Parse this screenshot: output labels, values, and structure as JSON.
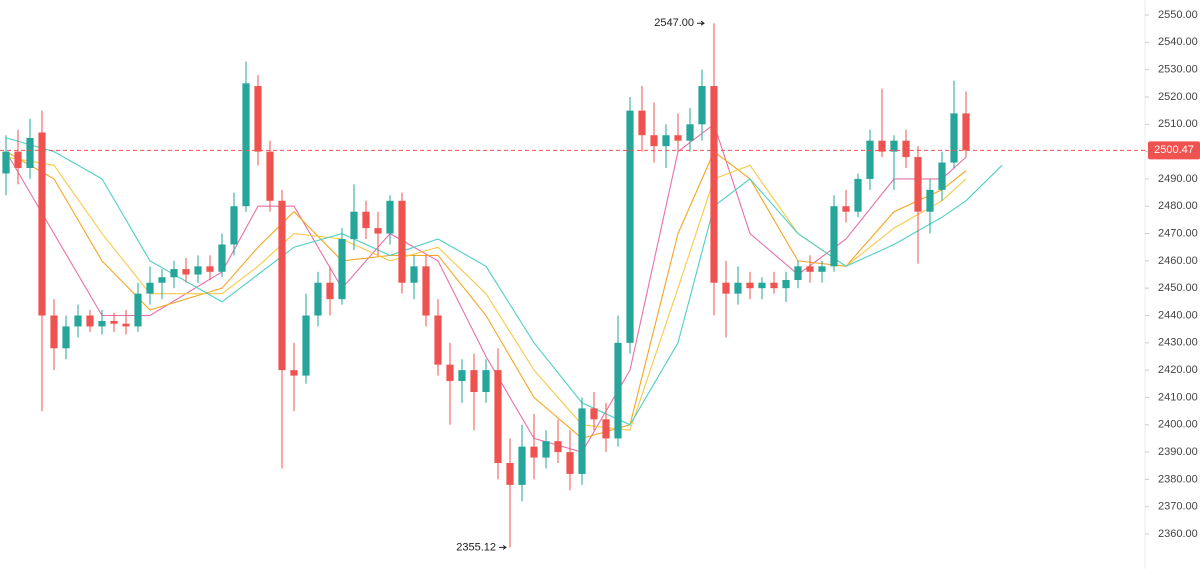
{
  "chart_data": {
    "type": "candlestick",
    "open": [
      2492,
      2500,
      2494,
      2507,
      2440,
      2428,
      2436,
      2440,
      2436,
      2438,
      2437,
      2436,
      2448,
      2452,
      2454,
      2457,
      2455,
      2458,
      2456,
      2466,
      2480,
      2524,
      2500,
      2482,
      2420,
      2418,
      2440,
      2452,
      2446,
      2468,
      2478,
      2472,
      2470,
      2482,
      2452,
      2458,
      2440,
      2422,
      2416,
      2420,
      2412,
      2420,
      2386,
      2378,
      2392,
      2388,
      2394,
      2390,
      2382,
      2406,
      2402,
      2395,
      2430,
      2515,
      2506,
      2502,
      2506,
      2504,
      2510,
      2524,
      2452,
      2448,
      2452,
      2450,
      2452,
      2450,
      2453,
      2458,
      2456,
      2458,
      2480,
      2478,
      2490,
      2504,
      2500,
      2504,
      2498,
      2478,
      2486,
      2496,
      2514
    ],
    "high": [
      2506,
      2508,
      2512,
      2515,
      2446,
      2440,
      2444,
      2442,
      2442,
      2441,
      2442,
      2452,
      2458,
      2457,
      2460,
      2461,
      2462,
      2462,
      2470,
      2485,
      2533,
      2528,
      2504,
      2486,
      2430,
      2448,
      2456,
      2458,
      2472,
      2488,
      2482,
      2478,
      2484,
      2485,
      2462,
      2462,
      2446,
      2430,
      2424,
      2426,
      2424,
      2428,
      2395,
      2400,
      2404,
      2398,
      2402,
      2398,
      2410,
      2412,
      2408,
      2440,
      2520,
      2524,
      2518,
      2510,
      2514,
      2516,
      2530,
      2547,
      2460,
      2458,
      2456,
      2454,
      2456,
      2456,
      2460,
      2462,
      2460,
      2484,
      2486,
      2492,
      2508,
      2523,
      2506,
      2508,
      2502,
      2490,
      2500,
      2526,
      2522
    ],
    "low": [
      2484,
      2488,
      2490,
      2405,
      2420,
      2424,
      2432,
      2434,
      2433,
      2434,
      2433,
      2434,
      2444,
      2446,
      2450,
      2452,
      2452,
      2453,
      2454,
      2462,
      2478,
      2495,
      2478,
      2384,
      2405,
      2415,
      2436,
      2440,
      2444,
      2464,
      2468,
      2462,
      2466,
      2448,
      2446,
      2436,
      2418,
      2400,
      2408,
      2398,
      2408,
      2380,
      2355.12,
      2372,
      2380,
      2384,
      2386,
      2376,
      2378,
      2398,
      2390,
      2392,
      2426,
      2500,
      2496,
      2494,
      2500,
      2500,
      2504,
      2440,
      2432,
      2444,
      2446,
      2446,
      2448,
      2445,
      2450,
      2452,
      2452,
      2456,
      2474,
      2476,
      2486,
      2498,
      2486,
      2494,
      2459,
      2470,
      2482,
      2494,
      2498
    ],
    "close": [
      2500,
      2494,
      2505,
      2440,
      2428,
      2436,
      2440,
      2436,
      2438,
      2437,
      2436,
      2448,
      2452,
      2454,
      2457,
      2455,
      2458,
      2456,
      2466,
      2480,
      2525,
      2500,
      2482,
      2420,
      2418,
      2440,
      2452,
      2446,
      2468,
      2478,
      2472,
      2470,
      2482,
      2452,
      2458,
      2440,
      2422,
      2416,
      2420,
      2412,
      2420,
      2386,
      2378,
      2392,
      2388,
      2394,
      2390,
      2382,
      2406,
      2402,
      2395,
      2430,
      2515,
      2506,
      2502,
      2506,
      2504,
      2510,
      2524,
      2452,
      2448,
      2452,
      2450,
      2452,
      2450,
      2453,
      2458,
      2456,
      2458,
      2480,
      2478,
      2490,
      2504,
      2500,
      2504,
      2498,
      2478,
      2486,
      2496,
      2514,
      2500.47
    ],
    "up_color": "#26a69a",
    "down_color": "#ef5350",
    "ma_lines": [
      {
        "color": "#e770a9",
        "x": [
          0,
          4,
          8,
          12,
          18,
          21,
          24,
          28,
          32,
          36,
          40,
          44,
          48,
          52,
          56,
          59,
          62,
          66,
          70,
          74,
          78,
          80
        ],
        "values": [
          2500,
          2470,
          2440,
          2440,
          2456,
          2480,
          2480,
          2450,
          2470,
          2460,
          2425,
          2395,
          2390,
          2420,
          2500,
          2510,
          2470,
          2455,
          2468,
          2490,
          2490,
          2498
        ]
      },
      {
        "color": "#f5a623",
        "x": [
          0,
          4,
          8,
          12,
          18,
          21,
          24,
          28,
          32,
          36,
          40,
          44,
          48,
          52,
          56,
          59,
          62,
          66,
          70,
          74,
          78,
          80
        ],
        "values": [
          2500,
          2490,
          2460,
          2442,
          2450,
          2465,
          2478,
          2460,
          2462,
          2462,
          2440,
          2410,
          2395,
          2400,
          2470,
          2500,
          2490,
          2460,
          2458,
          2478,
          2486,
          2493
        ]
      },
      {
        "color": "#f7c948",
        "x": [
          0,
          4,
          8,
          12,
          18,
          21,
          24,
          28,
          32,
          36,
          40,
          44,
          48,
          52,
          56,
          59,
          62,
          66,
          70,
          74,
          78,
          80
        ],
        "values": [
          2498,
          2495,
          2470,
          2448,
          2448,
          2458,
          2470,
          2468,
          2460,
          2465,
          2448,
          2420,
          2400,
          2398,
          2450,
          2490,
          2495,
          2470,
          2458,
          2472,
          2482,
          2490
        ]
      },
      {
        "color": "#4dd0c4",
        "x": [
          0,
          4,
          8,
          12,
          18,
          21,
          24,
          28,
          32,
          36,
          40,
          44,
          48,
          52,
          56,
          59,
          62,
          66,
          70,
          74,
          78,
          80,
          83
        ],
        "values": [
          2505,
          2500,
          2490,
          2460,
          2445,
          2455,
          2465,
          2470,
          2462,
          2468,
          2458,
          2430,
          2408,
          2400,
          2430,
          2480,
          2490,
          2470,
          2458,
          2466,
          2476,
          2482,
          2495
        ]
      }
    ],
    "xlim": [
      -0.5,
      94.5
    ],
    "ylim": [
      2347.2,
      2555.5
    ],
    "yticks": [
      {
        "value": 2360,
        "label": "2360.00"
      },
      {
        "value": 2370,
        "label": "2370.00"
      },
      {
        "value": 2380,
        "label": "2380.00"
      },
      {
        "value": 2390,
        "label": "2390.00"
      },
      {
        "value": 2400,
        "label": "2400.00"
      },
      {
        "value": 2410,
        "label": "2410.00"
      },
      {
        "value": 2420,
        "label": "2420.00"
      },
      {
        "value": 2430,
        "label": "2430.00"
      },
      {
        "value": 2440,
        "label": "2440.00"
      },
      {
        "value": 2450,
        "label": "2450.00"
      },
      {
        "value": 2460,
        "label": "2460.00"
      },
      {
        "value": 2470,
        "label": "2470.00"
      },
      {
        "value": 2480,
        "label": "2480.00"
      },
      {
        "value": 2490,
        "label": "2490.00"
      },
      {
        "value": 2500,
        "label": "2500.00"
      },
      {
        "value": 2510,
        "label": "2510.00"
      },
      {
        "value": 2520,
        "label": "2520.00"
      },
      {
        "value": 2530,
        "label": "2530.00"
      },
      {
        "value": 2540,
        "label": "2540.00"
      },
      {
        "value": 2550,
        "label": "2550.00"
      }
    ],
    "last_price": {
      "value": 2500.47,
      "label": "2500.47"
    },
    "high_label": {
      "value": 2547,
      "label": "2547.00"
    },
    "low_label": {
      "value": 2355.12,
      "label": "2355.12"
    }
  }
}
